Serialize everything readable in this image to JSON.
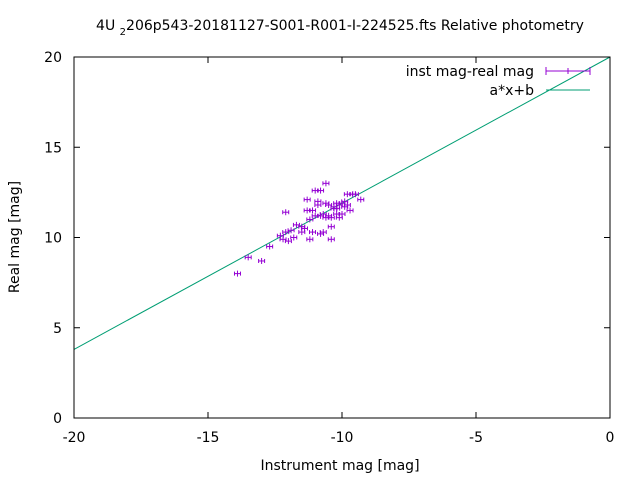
{
  "chart_data": {
    "type": "scatter",
    "title_parts": [
      "4U ",
      "2",
      "206p543-20181127-S001-R001-I-224525.fts Relative photometry"
    ],
    "xlabel": "Instrument mag [mag]",
    "ylabel": "Real mag [mag]",
    "xlim": [
      -20,
      0
    ],
    "ylim": [
      0,
      20
    ],
    "xticks": [
      -20,
      -15,
      -10,
      -5,
      0
    ],
    "yticks": [
      0,
      5,
      10,
      15,
      20
    ],
    "grid": false,
    "legend_position": "top-right",
    "colors": {
      "points": "#9400d3",
      "fit": "#009e73"
    },
    "series": [
      {
        "name": "inst mag-real mag",
        "style": "errorbars",
        "points": [
          [
            -13.9,
            8.0
          ],
          [
            -13.5,
            8.9
          ],
          [
            -13.0,
            8.7
          ],
          [
            -12.7,
            9.5
          ],
          [
            -12.3,
            10.1
          ],
          [
            -12.2,
            9.9
          ],
          [
            -12.1,
            10.3
          ],
          [
            -12.1,
            11.4
          ],
          [
            -12.0,
            9.8
          ],
          [
            -11.9,
            10.4
          ],
          [
            -11.8,
            10.0
          ],
          [
            -11.7,
            10.7
          ],
          [
            -11.5,
            10.3
          ],
          [
            -11.5,
            10.6
          ],
          [
            -11.4,
            10.5
          ],
          [
            -11.3,
            11.5
          ],
          [
            -11.3,
            12.1
          ],
          [
            -11.2,
            11.0
          ],
          [
            -11.2,
            9.9
          ],
          [
            -11.1,
            11.5
          ],
          [
            -11.1,
            10.3
          ],
          [
            -11.0,
            11.2
          ],
          [
            -11.0,
            12.6
          ],
          [
            -10.9,
            12.0
          ],
          [
            -10.9,
            11.8
          ],
          [
            -10.8,
            12.6
          ],
          [
            -10.8,
            11.2
          ],
          [
            -10.8,
            10.2
          ],
          [
            -10.7,
            10.3
          ],
          [
            -10.7,
            11.3
          ],
          [
            -10.6,
            11.9
          ],
          [
            -10.6,
            11.1
          ],
          [
            -10.6,
            13.0
          ],
          [
            -10.5,
            11.2
          ],
          [
            -10.5,
            11.8
          ],
          [
            -10.4,
            11.1
          ],
          [
            -10.4,
            10.6
          ],
          [
            -10.4,
            9.9
          ],
          [
            -10.3,
            11.6
          ],
          [
            -10.3,
            11.7
          ],
          [
            -10.2,
            11.6
          ],
          [
            -10.2,
            11.9
          ],
          [
            -10.2,
            11.3
          ],
          [
            -10.1,
            11.8
          ],
          [
            -10.1,
            11.1
          ],
          [
            -10.0,
            11.9
          ],
          [
            -10.0,
            11.3
          ],
          [
            -9.9,
            11.7
          ],
          [
            -9.9,
            12.0
          ],
          [
            -9.8,
            12.4
          ],
          [
            -9.8,
            11.8
          ],
          [
            -9.7,
            11.5
          ],
          [
            -9.6,
            12.4
          ],
          [
            -9.5,
            12.4
          ],
          [
            -9.3,
            12.1
          ]
        ]
      },
      {
        "name": "a*x+b",
        "style": "line",
        "line": [
          [
            -20,
            3.8
          ],
          [
            0,
            20
          ]
        ]
      }
    ]
  }
}
